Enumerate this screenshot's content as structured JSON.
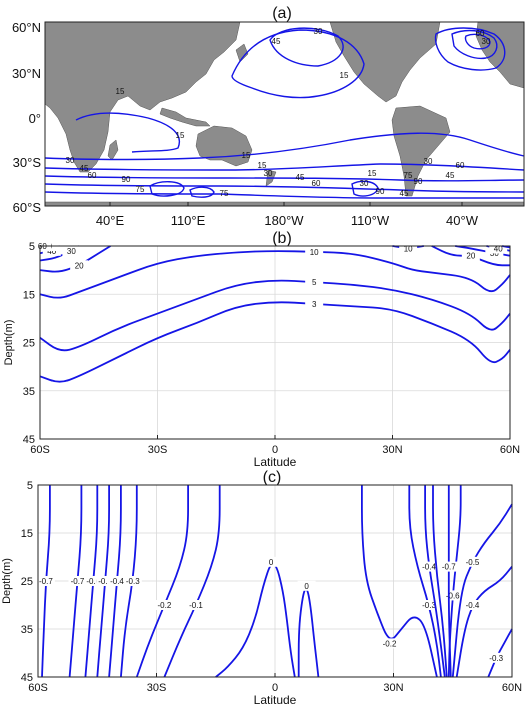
{
  "colors": {
    "contour": "#1515e6",
    "land": "#8c8c8c",
    "grid": "#d9d9d9",
    "frame": "#222222"
  },
  "chart_data": [
    {
      "type": "contour-map",
      "title": "(a)",
      "x_ticks": [
        "40°E",
        "110°E",
        "180°W",
        "110°W",
        "40°W"
      ],
      "y_ticks": [
        "60°N",
        "30°N",
        "0°",
        "30°S",
        "60°S"
      ],
      "contour_labels": [
        "30",
        "45",
        "15",
        "15",
        "15",
        "90",
        "75",
        "60",
        "45",
        "30",
        "15",
        "15",
        "15",
        "30",
        "45",
        "60",
        "90",
        "75",
        "60",
        "45",
        "30",
        "15",
        "30",
        "75",
        "90",
        "45",
        "30",
        "60"
      ]
    },
    {
      "type": "contour",
      "title": "(b)",
      "xlabel": "Latitude",
      "ylabel": "Depth(m)",
      "x_ticks": [
        "60S",
        "30S",
        "0",
        "30N",
        "60N"
      ],
      "y_ticks": [
        "5",
        "15",
        "25",
        "35",
        "45"
      ],
      "xlim": [
        -60,
        60
      ],
      "ylim": [
        45,
        5
      ],
      "levels": [
        {
          "value": 3,
          "label": "3",
          "points": [
            [
              -60,
              32
            ],
            [
              -55,
              33.5
            ],
            [
              -50,
              32
            ],
            [
              -40,
              28
            ],
            [
              -30,
              24
            ],
            [
              -20,
              21
            ],
            [
              -10,
              17.5
            ],
            [
              0,
              16.5
            ],
            [
              10,
              17
            ],
            [
              20,
              17.5
            ],
            [
              30,
              18
            ],
            [
              40,
              21
            ],
            [
              50,
              24.5
            ],
            [
              55,
              29.5
            ],
            [
              58,
              28.5
            ],
            [
              60,
              26.5
            ]
          ]
        },
        {
          "value": 5,
          "label": "5",
          "points": [
            [
              -60,
              24
            ],
            [
              -55,
              27
            ],
            [
              -50,
              26
            ],
            [
              -40,
              22
            ],
            [
              -30,
              19
            ],
            [
              -20,
              16
            ],
            [
              -10,
              13
            ],
            [
              0,
              12
            ],
            [
              10,
              12.5
            ],
            [
              20,
              13
            ],
            [
              30,
              14
            ],
            [
              40,
              16
            ],
            [
              50,
              19
            ],
            [
              55,
              23
            ],
            [
              58,
              21
            ],
            [
              60,
              19
            ]
          ]
        },
        {
          "value": 10,
          "label": "10",
          "points": [
            [
              -60,
              15
            ],
            [
              -55,
              16
            ],
            [
              -50,
              14.5
            ],
            [
              -40,
              11.5
            ],
            [
              -30,
              8.5
            ],
            [
              -20,
              7
            ],
            [
              -10,
              6.3
            ],
            [
              0,
              6
            ],
            [
              10,
              6.2
            ],
            [
              20,
              6.5
            ],
            [
              30,
              8.5
            ],
            [
              35,
              10
            ],
            [
              40,
              10.5
            ],
            [
              50,
              11.5
            ],
            [
              55,
              15
            ],
            [
              58,
              13
            ],
            [
              60,
              11
            ]
          ]
        },
        {
          "value": 20,
          "label": "20",
          "points": [
            [
              -60,
              10
            ],
            [
              -55,
              10.5
            ],
            [
              -50,
              9
            ],
            [
              -45,
              6.5
            ],
            [
              -42,
              5
            ]
          ]
        },
        {
          "value": 30,
          "label": "30",
          "points": [
            [
              -60,
              8
            ],
            [
              -56,
              7.5
            ],
            [
              -52,
              6
            ],
            [
              -50,
              5
            ]
          ]
        },
        {
          "value": 40,
          "label": "40",
          "points": [
            [
              -60,
              6.5
            ],
            [
              -57,
              6
            ],
            [
              -55,
              5
            ]
          ]
        },
        {
          "value": 50,
          "label": "50",
          "points": [
            [
              -60,
              5.8
            ],
            [
              -58,
              5
            ]
          ]
        },
        {
          "value": 60,
          "label": "60",
          "points": [
            [
              -60,
              5.3
            ],
            [
              -59.4,
              5
            ]
          ]
        },
        {
          "value": 10,
          "label": "10",
          "points": [
            [
              30,
              5
            ],
            [
              34,
              5.5
            ],
            [
              38,
              5
            ]
          ]
        },
        {
          "value": 20,
          "label": "20",
          "points": [
            [
              40,
              5
            ],
            [
              45,
              7
            ],
            [
              50,
              7
            ],
            [
              56,
              9
            ],
            [
              60,
              9
            ]
          ]
        },
        {
          "value": 30,
          "label": "30",
          "points": [
            [
              46,
              5
            ],
            [
              50,
              5.5
            ],
            [
              56,
              6.5
            ],
            [
              60,
              7
            ]
          ]
        },
        {
          "value": 40,
          "label": "40",
          "points": [
            [
              54,
              5
            ],
            [
              57,
              5.5
            ],
            [
              60,
              6
            ]
          ]
        },
        {
          "value": 50,
          "label": "",
          "points": [
            [
              58,
              5
            ],
            [
              60,
              5.3
            ]
          ]
        }
      ]
    },
    {
      "type": "contour",
      "title": "(c)",
      "xlabel": "Latitude",
      "ylabel": "Depth(m)",
      "x_ticks": [
        "60S",
        "30S",
        "0",
        "30N",
        "60N"
      ],
      "y_ticks": [
        "5",
        "15",
        "25",
        "35",
        "45"
      ],
      "xlim": [
        -60,
        60
      ],
      "ylim": [
        45,
        5
      ],
      "levels": [
        {
          "value": -0.7,
          "label": "-0.7",
          "points": [
            [
              -57,
              5
            ],
            [
              -57,
              15
            ],
            [
              -58,
              25
            ],
            [
              -58.5,
              35
            ],
            [
              -59,
              45
            ]
          ]
        },
        {
          "value": -0.7,
          "label": "-0.7",
          "points": [
            [
              -49,
              5
            ],
            [
              -49,
              15
            ],
            [
              -50,
              25
            ],
            [
              -51,
              35
            ],
            [
              -52,
              45
            ]
          ]
        },
        {
          "value": -0.6,
          "label": "-0.6",
          "points": [
            [
              -45,
              5
            ],
            [
              -45,
              15
            ],
            [
              -46,
              25
            ],
            [
              -47,
              35
            ],
            [
              -48,
              45
            ]
          ]
        },
        {
          "value": -0.5,
          "label": "-0.5",
          "points": [
            [
              -42,
              5
            ],
            [
              -42,
              15
            ],
            [
              -43,
              25
            ],
            [
              -44,
              35
            ],
            [
              -45,
              45
            ]
          ]
        },
        {
          "value": -0.4,
          "label": "-0.4",
          "points": [
            [
              -39,
              5
            ],
            [
              -39,
              15
            ],
            [
              -40,
              25
            ],
            [
              -41,
              35
            ],
            [
              -42,
              45
            ]
          ]
        },
        {
          "value": -0.3,
          "label": "-0.3",
          "points": [
            [
              -35,
              5
            ],
            [
              -35,
              15
            ],
            [
              -36,
              25
            ],
            [
              -38,
              35
            ],
            [
              -39,
              45
            ]
          ]
        },
        {
          "value": -0.2,
          "label": "-0.2",
          "points": [
            [
              -22,
              5
            ],
            [
              -22,
              15
            ],
            [
              -24,
              22
            ],
            [
              -28,
              30
            ],
            [
              -32,
              38
            ],
            [
              -35,
              45
            ]
          ]
        },
        {
          "value": -0.1,
          "label": "-0.1",
          "points": [
            [
              -14,
              5
            ],
            [
              -14,
              15
            ],
            [
              -16,
              22
            ],
            [
              -20,
              30
            ],
            [
              -24,
              37
            ],
            [
              -28,
              45
            ]
          ]
        },
        {
          "value": 0,
          "label": "0",
          "points": [
            [
              5,
              45
            ],
            [
              4,
              40
            ],
            [
              3,
              33
            ],
            [
              2,
              27
            ],
            [
              0.5,
              22
            ],
            [
              -1,
              21
            ],
            [
              -3,
              26
            ],
            [
              -5,
              33
            ],
            [
              -8,
              39
            ],
            [
              -12,
              43
            ],
            [
              -15,
              45
            ]
          ]
        },
        {
          "value": 0,
          "label": "0",
          "points": [
            [
              11,
              45
            ],
            [
              10,
              38
            ],
            [
              9,
              30
            ],
            [
              8,
              26
            ],
            [
              7,
              28
            ],
            [
              6,
              35
            ],
            [
              6,
              45
            ]
          ]
        },
        {
          "value": -0.2,
          "label": "-0.2",
          "points": [
            [
              22,
              5
            ],
            [
              22,
              15
            ],
            [
              23,
              25
            ],
            [
              26,
              32
            ],
            [
              29,
              38
            ],
            [
              32,
              35
            ],
            [
              35,
              32
            ],
            [
              38,
              34
            ],
            [
              41,
              45
            ]
          ]
        },
        {
          "value": -0.3,
          "label": "-0.3",
          "points": [
            [
              34,
              5
            ],
            [
              34,
              14
            ],
            [
              36,
              22
            ],
            [
              39,
              30
            ],
            [
              41,
              38
            ],
            [
              42,
              45
            ]
          ]
        },
        {
          "value": -0.4,
          "label": "-0.4",
          "points": [
            [
              38,
              5
            ],
            [
              38,
              14
            ],
            [
              39,
              22
            ],
            [
              41,
              32
            ],
            [
              43,
              45
            ]
          ]
        },
        {
          "value": -0.5,
          "label": "",
          "points": [
            [
              40,
              5
            ],
            [
              40,
              14
            ],
            [
              41,
              24
            ],
            [
              42.5,
              34
            ],
            [
              43.5,
              45
            ]
          ]
        },
        {
          "value": -0.6,
          "label": "-0.6",
          "points": [
            [
              47,
              5
            ],
            [
              47,
              12
            ],
            [
              46,
              20
            ],
            [
              45,
              28
            ],
            [
              44.2,
              38
            ],
            [
              44,
              45
            ]
          ]
        },
        {
          "value": -0.7,
          "label": "-0.7",
          "points": [
            [
              44,
              5
            ],
            [
              44,
              12
            ],
            [
              44,
              22
            ],
            [
              44,
              32
            ],
            [
              44.5,
              45
            ]
          ]
        },
        {
          "value": -0.5,
          "label": "-0.5",
          "points": [
            [
              60,
              9
            ],
            [
              57,
              13
            ],
            [
              53,
              17
            ],
            [
              50,
              21
            ],
            [
              47,
              27
            ],
            [
              45,
              45
            ]
          ]
        },
        {
          "value": -0.4,
          "label": "-0.4",
          "points": [
            [
              60,
              22
            ],
            [
              57,
              25
            ],
            [
              53,
              27
            ],
            [
              50,
              30
            ],
            [
              48,
              35
            ],
            [
              46,
              45
            ]
          ]
        },
        {
          "value": -0.3,
          "label": "-0.3",
          "points": [
            [
              60,
              35
            ],
            [
              58,
              38
            ],
            [
              56,
              41
            ],
            [
              54,
              45
            ]
          ]
        }
      ]
    }
  ]
}
